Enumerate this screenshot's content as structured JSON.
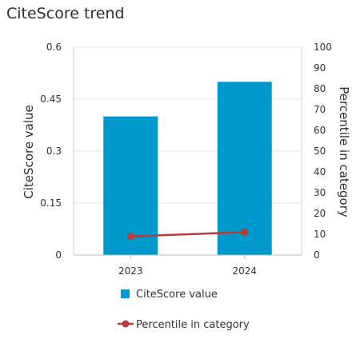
{
  "widget": {
    "title": "CiteScore trend"
  },
  "chart_data": {
    "type": "bar",
    "title": "CiteScore trend",
    "categories": [
      "2023",
      "2024"
    ],
    "series": [
      {
        "name": "CiteScore value",
        "type": "bar",
        "axis": "left",
        "color": "#0099cc",
        "values": [
          0.4,
          0.5
        ]
      },
      {
        "name": "Percentile in category",
        "type": "line",
        "axis": "right",
        "color": "#b83a3a",
        "values": [
          9,
          11
        ]
      }
    ],
    "ylabel": "CiteScore value",
    "ylim": [
      0,
      0.6
    ],
    "yticks": [
      "0",
      "0.15",
      "0.3",
      "0.45",
      "0.6"
    ],
    "y2label": "Percentile in category",
    "y2lim": [
      0,
      100
    ],
    "y2ticks": [
      "0",
      "10",
      "20",
      "30",
      "40",
      "50",
      "60",
      "70",
      "80",
      "90",
      "100"
    ],
    "grid": true,
    "legend_position": "bottom"
  }
}
